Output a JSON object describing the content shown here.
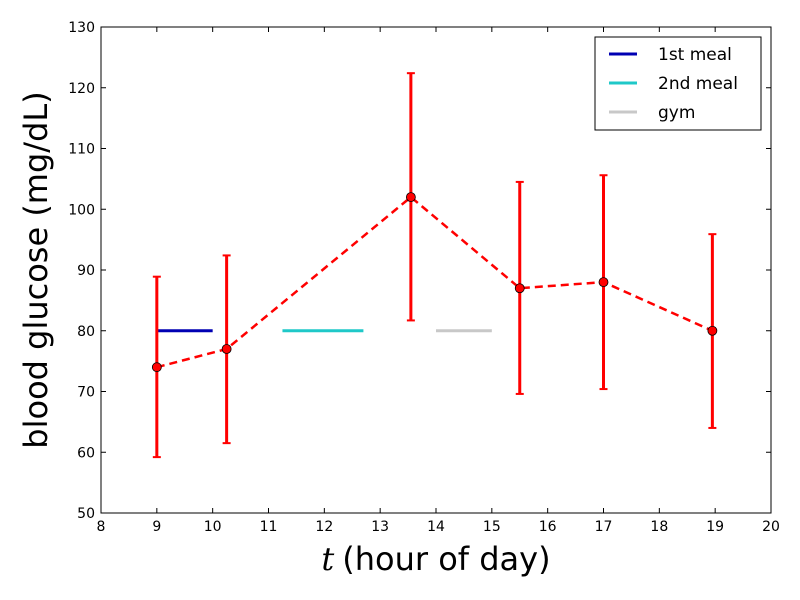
{
  "chart_data": {
    "type": "line",
    "title": "",
    "xlabel_var": "t",
    "xlabel_rest": "(hour of day)",
    "ylabel": "blood glucose (mg/dL)",
    "xlim": [
      8,
      20
    ],
    "ylim": [
      50,
      130
    ],
    "xticks": [
      8,
      9,
      10,
      11,
      12,
      13,
      14,
      15,
      16,
      17,
      18,
      19,
      20
    ],
    "yticks": [
      50,
      60,
      70,
      80,
      90,
      100,
      110,
      120,
      130
    ],
    "grid": false,
    "legend_position": "top-right",
    "measurements": {
      "color": "#ff0000",
      "x": [
        9.0,
        10.25,
        13.55,
        15.5,
        17.0,
        18.95
      ],
      "y": [
        74,
        77,
        102,
        87,
        88,
        80
      ],
      "yerr_low": [
        59.2,
        61.5,
        81.7,
        69.6,
        70.4,
        64.0
      ],
      "yerr_high": [
        88.9,
        92.4,
        122.4,
        104.5,
        105.6,
        95.9
      ]
    },
    "events": [
      {
        "name": "1st meal",
        "x_start": 9.0,
        "x_end": 10.0,
        "y": 80,
        "color": "#0000b3"
      },
      {
        "name": "2nd meal",
        "x_start": 11.25,
        "x_end": 12.7,
        "y": 80,
        "color": "#1fc8c8"
      },
      {
        "name": "gym",
        "x_start": 14.0,
        "x_end": 15.0,
        "y": 80,
        "color": "#c8c8c8"
      }
    ]
  }
}
